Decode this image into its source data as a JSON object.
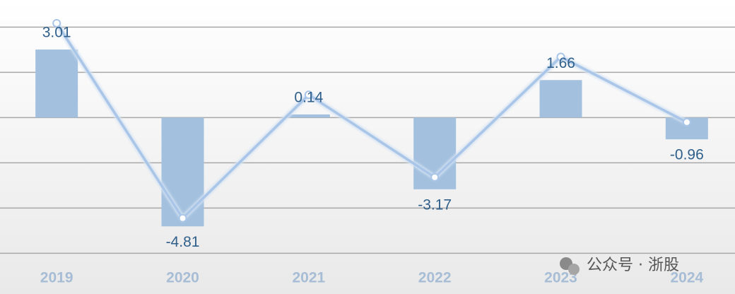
{
  "chart_data": {
    "type": "bar",
    "categories": [
      "2019",
      "2020",
      "2021",
      "2022",
      "2023",
      "2024"
    ],
    "series": [
      {
        "type": "bar",
        "color": "#a3c1df",
        "values": [
          3.01,
          -4.81,
          0.14,
          -3.17,
          1.66,
          -0.96
        ]
      },
      {
        "type": "line",
        "color": "#a9c5e8",
        "axis": "y2",
        "values": [
          3.01,
          -4.81,
          0.14,
          -3.17,
          1.66,
          -0.96
        ]
      }
    ],
    "ylim": [
      -7.8,
      5.2
    ],
    "yticks": [
      -6,
      -4,
      -2,
      0,
      2,
      4
    ],
    "y2lim": [
      -7.85,
      3.94
    ],
    "grid": true,
    "watermark": "公众号 · 浙股"
  }
}
